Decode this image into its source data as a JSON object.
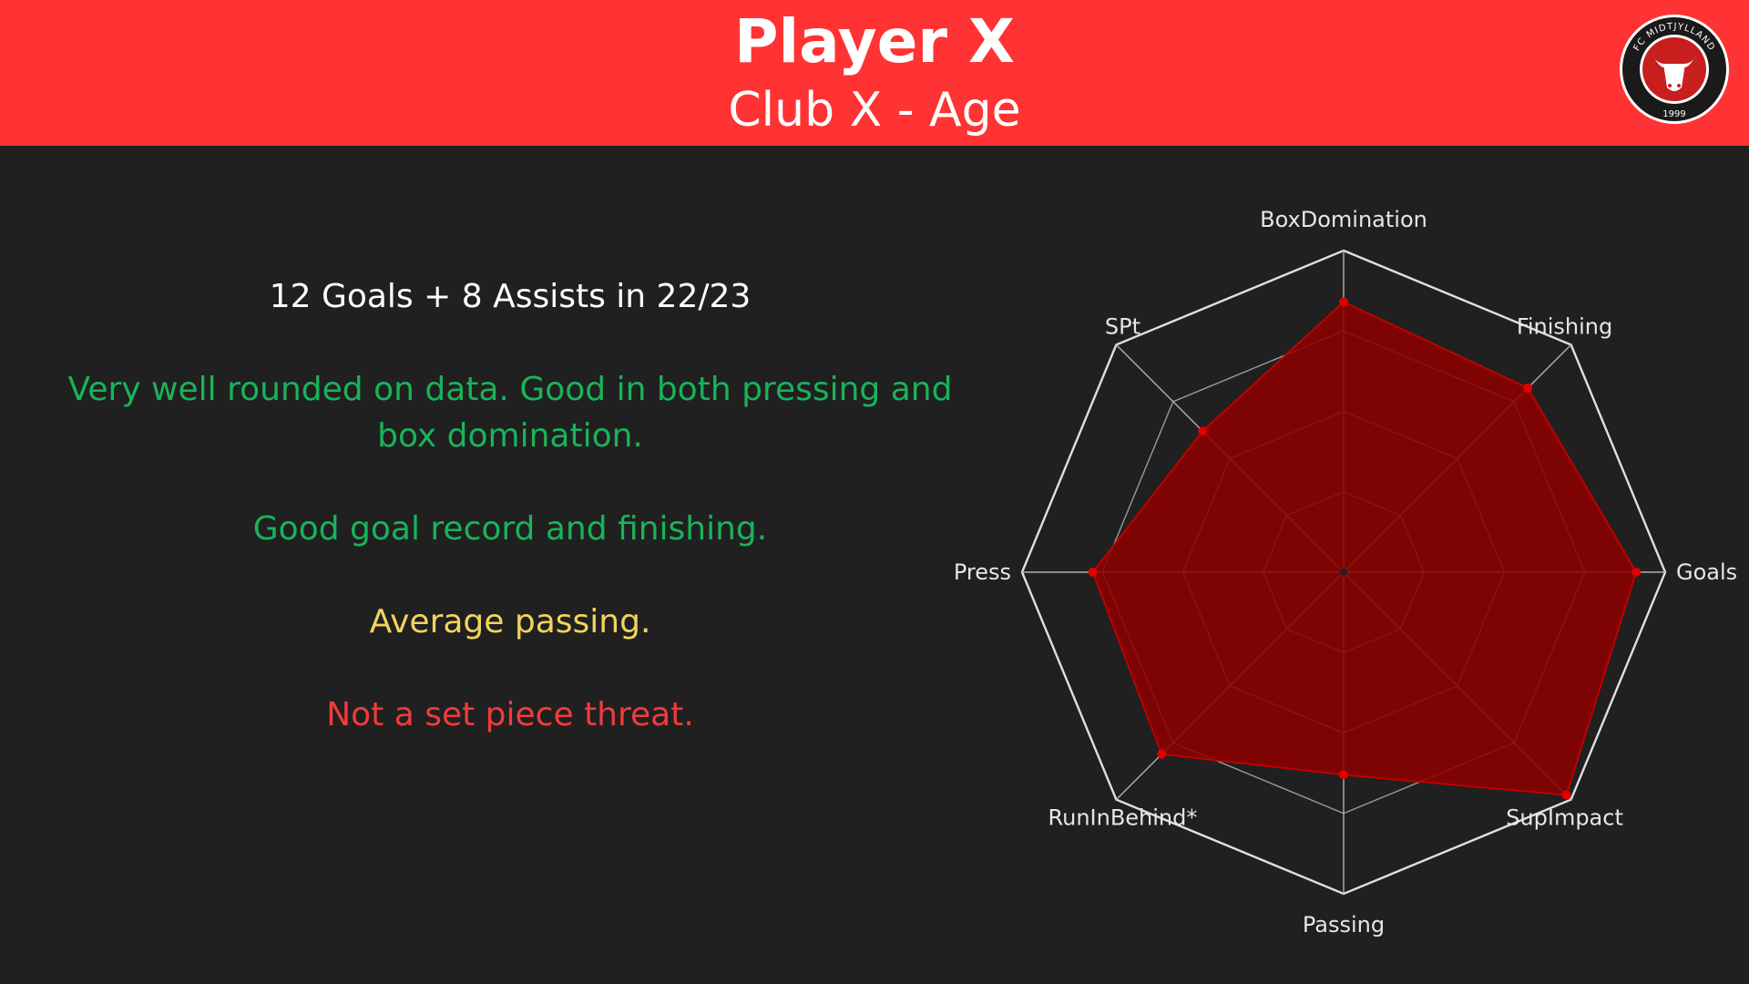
{
  "header": {
    "title": "Player X",
    "subtitle": "Club X - Age",
    "background": "#ff3333"
  },
  "logo": {
    "text_top": "FC MIDTJYLLAND",
    "year": "1999",
    "icon": "bull-head-icon"
  },
  "notes": {
    "stat_line": "12 Goals + 8 Assists in 22/23",
    "good_rounded": "Very well rounded on data. Good in both pressing and box domination.",
    "good_goals": "Good goal record and finishing.",
    "average": "Average passing.",
    "bad": "Not a set piece threat."
  },
  "colors": {
    "good": "#19b35a",
    "average": "#f2d45c",
    "bad": "#f03c3c",
    "fill": "#8b0000",
    "point": "#e00000",
    "grid": "#cccccc"
  },
  "chart_data": {
    "type": "radar",
    "axes": [
      "BoxDomination",
      "Finishing",
      "Goals",
      "SupImpact",
      "Passing",
      "RunInBehind*",
      "Press",
      "SPt"
    ],
    "values": [
      84,
      81,
      91,
      98,
      63,
      80,
      78,
      62
    ],
    "rlim": [
      0,
      100
    ],
    "rings": [
      25,
      50,
      75,
      100
    ],
    "grid": true
  }
}
